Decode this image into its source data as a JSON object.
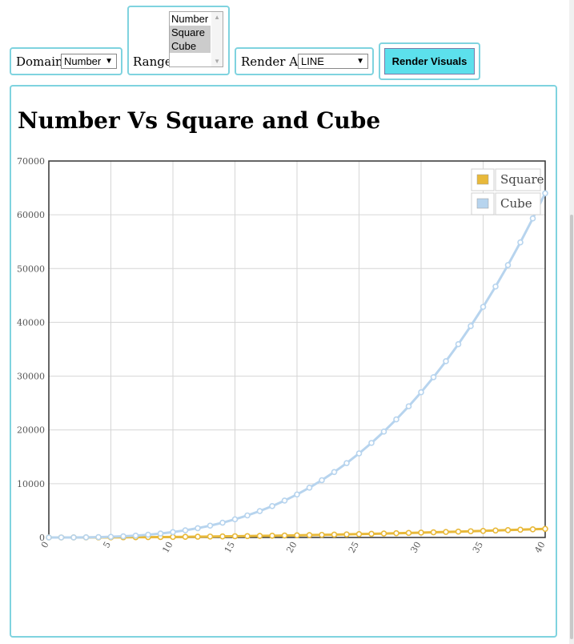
{
  "controls": {
    "domain": {
      "label": "Domain",
      "selected": "Number"
    },
    "range": {
      "label": "Range",
      "options": [
        "Number",
        "Square",
        "Cube"
      ],
      "selected": [
        "Square",
        "Cube"
      ]
    },
    "render_as": {
      "label": "Render As",
      "selected": "LINE"
    },
    "render_button": "Render Visuals"
  },
  "icons": {
    "dropdown": "chevron-down-icon",
    "scroll_up": "scroll-up-icon",
    "scroll_down": "scroll-down-icon"
  },
  "chart_data": {
    "type": "line",
    "title": "Number Vs Square and Cube",
    "xlabel": "",
    "ylabel": "",
    "x": [
      0,
      1,
      2,
      3,
      4,
      5,
      6,
      7,
      8,
      9,
      10,
      11,
      12,
      13,
      14,
      15,
      16,
      17,
      18,
      19,
      20,
      21,
      22,
      23,
      24,
      25,
      26,
      27,
      28,
      29,
      30,
      31,
      32,
      33,
      34,
      35,
      36,
      37,
      38,
      39,
      40
    ],
    "series": [
      {
        "name": "Square",
        "color": "#e8b93a",
        "values": [
          0,
          1,
          4,
          9,
          16,
          25,
          36,
          49,
          64,
          81,
          100,
          121,
          144,
          169,
          196,
          225,
          256,
          289,
          324,
          361,
          400,
          441,
          484,
          529,
          576,
          625,
          676,
          729,
          784,
          841,
          900,
          961,
          1024,
          1089,
          1156,
          1225,
          1296,
          1369,
          1444,
          1521,
          1600
        ]
      },
      {
        "name": "Cube",
        "color": "#b7d4ee",
        "values": [
          0,
          1,
          8,
          27,
          64,
          125,
          216,
          343,
          512,
          729,
          1000,
          1331,
          1728,
          2197,
          2744,
          3375,
          4096,
          4913,
          5832,
          6859,
          8000,
          9261,
          10648,
          12167,
          13824,
          15625,
          17576,
          19683,
          21952,
          24389,
          27000,
          29791,
          32768,
          35937,
          39304,
          42875,
          46656,
          50653,
          54872,
          59319,
          64000
        ]
      }
    ],
    "xlim": [
      0,
      40
    ],
    "ylim": [
      0,
      70000
    ],
    "x_ticks": [
      "0",
      "5",
      "10",
      "15",
      "20",
      "25",
      "30",
      "35",
      "40"
    ],
    "y_ticks": [
      "0",
      "10000",
      "20000",
      "30000",
      "40000",
      "50000",
      "60000",
      "70000"
    ],
    "grid": true,
    "legend_position": "top-right"
  }
}
